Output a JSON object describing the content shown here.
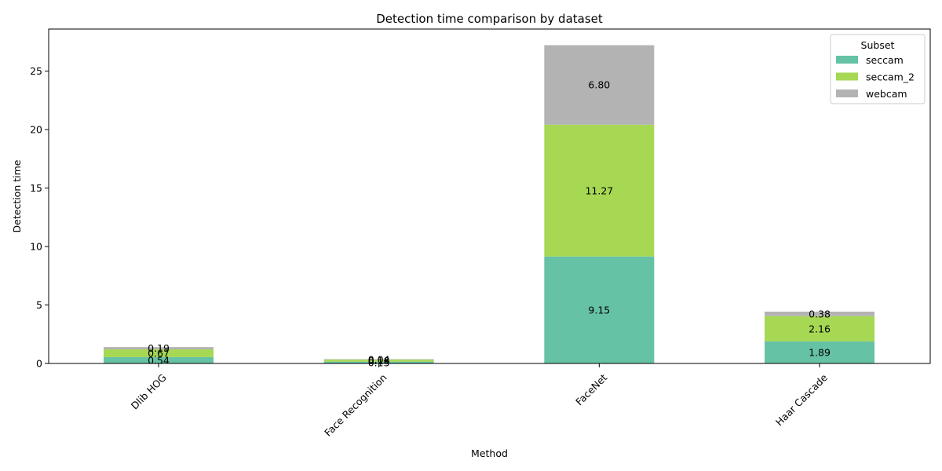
{
  "chart_data": {
    "type": "bar",
    "stacked": true,
    "title": "Detection time comparison by dataset",
    "xlabel": "Method",
    "ylabel": "Detection time",
    "categories": [
      "Dlib HOG",
      "Face Recognition",
      "FaceNet",
      "Haar Cascade"
    ],
    "series": [
      {
        "name": "seccam",
        "values": [
          0.54,
          0.15,
          9.15,
          1.89
        ],
        "color": "#66c2a5"
      },
      {
        "name": "seccam_2",
        "values": [
          0.67,
          0.18,
          11.27,
          2.16
        ],
        "color": "#a6d854"
      },
      {
        "name": "webcam",
        "values": [
          0.19,
          0.04,
          6.8,
          0.38
        ],
        "color": "#b3b3b3"
      }
    ],
    "data_labels": [
      [
        "0.54",
        "0.15",
        "9.15",
        "1.89"
      ],
      [
        "0.67",
        "0.18",
        "11.27",
        "2.16"
      ],
      [
        "0.19",
        "0.04",
        "6.80",
        "0.38"
      ]
    ],
    "yticks": [
      0,
      5,
      10,
      15,
      20,
      25
    ],
    "ytick_labels": [
      "0",
      "5",
      "10",
      "15",
      "20",
      "25"
    ],
    "ylim": [
      0,
      28.6
    ],
    "grid": false,
    "legend": {
      "title": "Subset",
      "position": "top-right"
    }
  }
}
